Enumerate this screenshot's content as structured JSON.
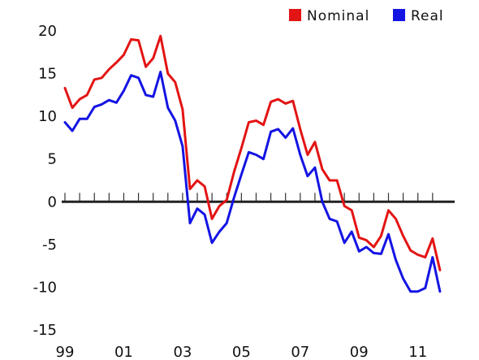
{
  "chart_data": {
    "type": "line",
    "title": "",
    "xlabel": "",
    "ylabel": "",
    "ylim": [
      -15,
      20
    ],
    "yticks": [
      20,
      15,
      10,
      5,
      0,
      -5,
      -10,
      -15
    ],
    "ytick_labels": [
      "20",
      "15",
      "10",
      "5",
      "0",
      "-5",
      "-10",
      "-15"
    ],
    "xlim": [
      1999.0,
      2012.25
    ],
    "xticks": [
      1999,
      2001,
      2003,
      2005,
      2007,
      2009,
      2011
    ],
    "xtick_labels": [
      "99",
      "01",
      "03",
      "05",
      "07",
      "09",
      "11"
    ],
    "grid": false,
    "legend": "top-right",
    "series": [
      {
        "name": "Nominal",
        "color": "#e31414",
        "x": [
          1999.0,
          1999.25,
          1999.5,
          1999.75,
          2000.0,
          2000.25,
          2000.5,
          2000.75,
          2001.0,
          2001.25,
          2001.5,
          2001.75,
          2002.0,
          2002.25,
          2002.5,
          2002.75,
          2003.0,
          2003.25,
          2003.5,
          2003.75,
          2004.0,
          2004.25,
          2004.5,
          2004.75,
          2005.0,
          2005.25,
          2005.5,
          2005.75,
          2006.0,
          2006.25,
          2006.5,
          2006.75,
          2007.0,
          2007.25,
          2007.5,
          2007.75,
          2008.0,
          2008.25,
          2008.5,
          2008.75,
          2009.0,
          2009.25,
          2009.5,
          2009.75,
          2010.0,
          2010.25,
          2010.5,
          2010.75,
          2011.0,
          2011.25,
          2011.5,
          2011.75
        ],
        "values": [
          13.3,
          11.0,
          12.0,
          12.5,
          14.3,
          14.5,
          15.5,
          16.3,
          17.2,
          19.0,
          18.9,
          15.8,
          16.8,
          19.4,
          15.0,
          14.0,
          10.8,
          1.5,
          2.5,
          1.8,
          -2.0,
          -0.5,
          0.2,
          3.5,
          6.3,
          9.3,
          9.5,
          9.0,
          11.7,
          12.0,
          11.5,
          11.8,
          8.5,
          5.5,
          7.0,
          3.8,
          2.5,
          2.5,
          -0.5,
          -1.0,
          -4.2,
          -4.5,
          -5.3,
          -4.0,
          -1.0,
          -2.0,
          -4.0,
          -5.7,
          -6.2,
          -6.5,
          -4.3,
          -8.0
        ]
      },
      {
        "name": "Real",
        "color": "#1414e3",
        "x": [
          1999.0,
          1999.25,
          1999.5,
          1999.75,
          2000.0,
          2000.25,
          2000.5,
          2000.75,
          2001.0,
          2001.25,
          2001.5,
          2001.75,
          2002.0,
          2002.25,
          2002.5,
          2002.75,
          2003.0,
          2003.25,
          2003.5,
          2003.75,
          2004.0,
          2004.25,
          2004.5,
          2004.75,
          2005.0,
          2005.25,
          2005.5,
          2005.75,
          2006.0,
          2006.25,
          2006.5,
          2006.75,
          2007.0,
          2007.25,
          2007.5,
          2007.75,
          2008.0,
          2008.25,
          2008.5,
          2008.75,
          2009.0,
          2009.25,
          2009.5,
          2009.75,
          2010.0,
          2010.25,
          2010.5,
          2010.75,
          2011.0,
          2011.25,
          2011.5,
          2011.75
        ],
        "values": [
          9.3,
          8.3,
          9.7,
          9.7,
          11.1,
          11.4,
          11.9,
          11.6,
          13.0,
          14.8,
          14.5,
          12.5,
          12.3,
          15.2,
          11.0,
          9.5,
          6.5,
          -2.5,
          -0.8,
          -1.5,
          -4.8,
          -3.5,
          -2.5,
          0.5,
          3.2,
          5.8,
          5.5,
          5.0,
          8.2,
          8.5,
          7.5,
          8.6,
          5.5,
          3.0,
          4.0,
          0.0,
          -2.0,
          -2.3,
          -4.8,
          -3.5,
          -5.8,
          -5.3,
          -6.0,
          -6.1,
          -3.8,
          -6.8,
          -9.0,
          -10.5,
          -10.5,
          -10.1,
          -6.5,
          -10.5
        ]
      }
    ]
  }
}
